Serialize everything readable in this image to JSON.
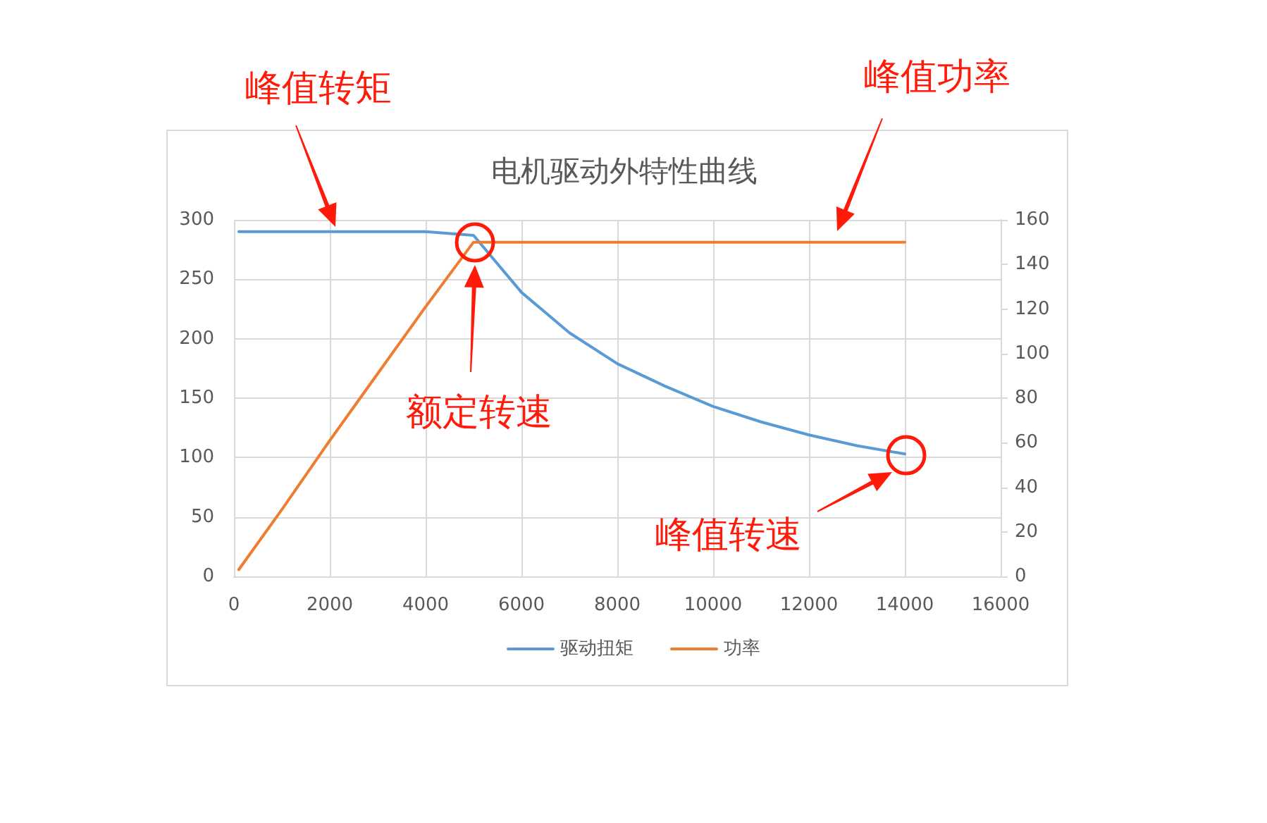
{
  "chart_data": {
    "type": "line",
    "title": "电机驱动外特性曲线",
    "series": [
      {
        "name": "驱动扭矩",
        "color": "#5b9bd5",
        "x": [
          100,
          1000,
          2000,
          3000,
          4000,
          5000,
          6000,
          7000,
          8000,
          9000,
          10000,
          11000,
          12000,
          13000,
          14000
        ],
        "values": [
          290,
          290,
          290,
          290,
          290,
          287,
          239,
          205,
          179,
          160,
          143,
          130,
          119,
          110,
          103
        ]
      },
      {
        "name": "功率",
        "color": "#ed7d31",
        "axis": "y2",
        "x": [
          100,
          1000,
          2000,
          3000,
          4000,
          5000,
          6000,
          7000,
          8000,
          9000,
          10000,
          11000,
          12000,
          13000,
          14000
        ],
        "values": [
          3,
          30,
          61,
          91,
          121,
          150,
          150,
          150,
          150,
          150,
          150,
          150,
          150,
          150,
          150
        ]
      }
    ],
    "xlim": [
      0,
      16000
    ],
    "xticks": [
      0,
      2000,
      4000,
      6000,
      8000,
      10000,
      12000,
      14000,
      16000
    ],
    "ylim": [
      0,
      300
    ],
    "yticks": [
      0,
      50,
      100,
      150,
      200,
      250,
      300
    ],
    "y2lim": [
      0,
      160
    ],
    "y2ticks": [
      0,
      20,
      40,
      60,
      80,
      100,
      120,
      140,
      160
    ],
    "grid": true,
    "legend": "bottom",
    "marker": "none",
    "line_style": "solid",
    "annotations": [
      "峰值转矩",
      "峰值功率",
      "额定转速",
      "峰值转速"
    ]
  }
}
